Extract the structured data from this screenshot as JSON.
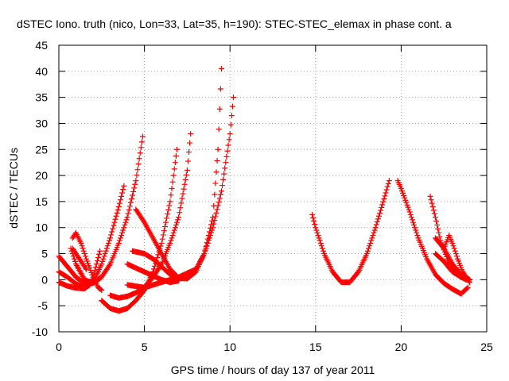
{
  "chart_data": {
    "type": "scatter",
    "title": "dSTEC Iono. truth (nico, Lon=33, Lat=35, h=190): STEC-STEC_elemax in phase cont. a",
    "xlabel": "GPS time / hours of day 137 of year 2011",
    "ylabel": "dSTEC  / TECUs",
    "xlim": [
      0,
      25
    ],
    "ylim": [
      -10,
      45
    ],
    "xticks": [
      "0",
      "5",
      "10",
      "15",
      "20",
      "25"
    ],
    "yticks": [
      "-10",
      "-5",
      "0",
      "5",
      "10",
      "15",
      "20",
      "25",
      "30",
      "35",
      "40",
      "45"
    ],
    "grid": true,
    "marker": "plus",
    "color": "#ff0000",
    "series": [
      {
        "x": [
          0.0,
          0.5,
          1.0,
          1.5,
          1.8,
          2.0,
          2.2,
          2.4
        ],
        "y": [
          4.5,
          2.5,
          0.5,
          -0.7,
          -1.0,
          0.5,
          3.0,
          5.5
        ]
      },
      {
        "x": [
          0.0,
          0.5,
          1.0,
          1.5,
          2.0,
          2.5,
          3.0,
          3.5,
          3.8
        ],
        "y": [
          1.5,
          0.5,
          -0.8,
          -1.5,
          -0.5,
          3.0,
          8.0,
          14.0,
          18.0
        ]
      },
      {
        "x": [
          0.0,
          0.5,
          1.0,
          1.5,
          1.8,
          2.0
        ],
        "y": [
          -0.5,
          -1.2,
          -1.6,
          -1.7,
          -1.0,
          0.5
        ]
      },
      {
        "x": [
          0.8,
          1.0,
          1.3,
          1.6,
          2.0,
          2.3,
          2.5
        ],
        "y": [
          8.0,
          9.0,
          7.0,
          4.0,
          0.5,
          -1.5,
          -2.0
        ]
      },
      {
        "x": [
          0.7,
          1.0,
          1.5,
          2.0,
          2.5,
          3.0,
          3.5,
          4.0,
          4.5,
          4.9
        ],
        "y": [
          6.0,
          3.0,
          0.0,
          -0.7,
          0.5,
          3.0,
          7.0,
          12.0,
          19.0,
          27.5
        ]
      },
      {
        "x": [
          0.8,
          1.2,
          1.6
        ],
        "y": [
          6.0,
          4.0,
          2.0
        ]
      },
      {
        "x": [
          2.5,
          3.0,
          3.5,
          4.0,
          4.5,
          5.0,
          5.5,
          6.0,
          6.5,
          6.9
        ],
        "y": [
          -4.0,
          -5.5,
          -6.0,
          -5.5,
          -4.0,
          -2.0,
          1.5,
          7.0,
          15.0,
          25.0
        ]
      },
      {
        "x": [
          3.0,
          3.5,
          4.0,
          4.5,
          5.0,
          5.5,
          6.0,
          6.5,
          7.0,
          7.5,
          7.7
        ],
        "y": [
          -3.0,
          -3.5,
          -3.2,
          -2.5,
          -1.5,
          0.5,
          3.0,
          7.0,
          12.0,
          21.0,
          28.0
        ]
      },
      {
        "x": [
          4.5,
          5.0,
          5.5,
          6.0,
          6.5,
          7.0,
          7.5,
          8.0,
          8.5,
          9.0,
          9.3,
          9.5
        ],
        "y": [
          13.5,
          11.0,
          8.0,
          5.0,
          2.0,
          0.3,
          0.2,
          1.5,
          5.0,
          12.0,
          25.0,
          40.5
        ]
      },
      {
        "x": [
          4.0,
          5.0,
          6.0,
          7.0,
          8.0,
          8.5,
          9.0,
          9.5,
          10.0,
          10.2
        ],
        "y": [
          -1.0,
          -1.5,
          -0.5,
          0.5,
          2.0,
          5.0,
          10.0,
          17.0,
          28.0,
          35.0
        ]
      },
      {
        "x": [
          4.0,
          5.0,
          6.0,
          6.5,
          7.0
        ],
        "y": [
          3.0,
          1.5,
          0.0,
          -0.5,
          -0.2
        ]
      },
      {
        "x": [
          4.3,
          5.0,
          5.5,
          6.0,
          6.5,
          7.0
        ],
        "y": [
          5.5,
          5.0,
          4.0,
          2.5,
          1.0,
          0.0
        ]
      },
      {
        "x": [
          14.8,
          15.0,
          15.5,
          16.0,
          16.5,
          17.0,
          17.5,
          18.0,
          18.5,
          19.0,
          19.3
        ],
        "y": [
          12.5,
          10.0,
          5.0,
          1.5,
          -0.5,
          -0.5,
          1.5,
          5.0,
          10.0,
          15.5,
          19.0
        ]
      },
      {
        "x": [
          19.8,
          20.0,
          20.5,
          21.0,
          21.5,
          22.0,
          22.5,
          23.0,
          23.5,
          23.9
        ],
        "y": [
          19.0,
          17.5,
          13.0,
          8.0,
          4.0,
          1.0,
          -0.7,
          -1.8,
          -2.7,
          -1.5
        ]
      },
      {
        "x": [
          21.7,
          22.0,
          22.3,
          22.7,
          23.0,
          23.5,
          23.8,
          24.0
        ],
        "y": [
          16.0,
          12.0,
          7.5,
          4.0,
          2.0,
          0.5,
          0.0,
          0.0
        ]
      },
      {
        "x": [
          22.0,
          22.5,
          23.0,
          23.5,
          24.0
        ],
        "y": [
          8.0,
          6.0,
          3.0,
          1.0,
          0.0
        ]
      },
      {
        "x": [
          22.0,
          22.5,
          23.0,
          23.5,
          24.0
        ],
        "y": [
          5.0,
          3.5,
          1.5,
          0.5,
          0.0
        ]
      },
      {
        "x": [
          22.5,
          22.8,
          23.0,
          23.3,
          23.6,
          24.0
        ],
        "y": [
          6.0,
          8.5,
          7.0,
          4.0,
          1.5,
          -0.5
        ]
      }
    ]
  }
}
